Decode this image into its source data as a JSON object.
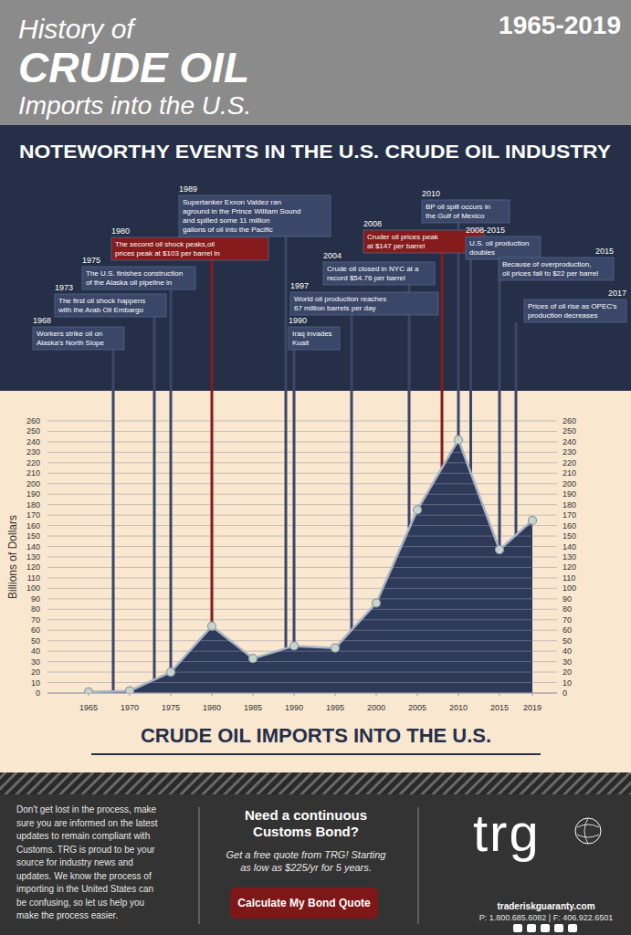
{
  "header": {
    "title_lines": [
      "History of",
      "CRUDE OIL",
      "Imports into the U.S."
    ],
    "years": "1965-2019"
  },
  "events_heading": "NOTEWORTHY EVENTS IN THE U.S. CRUDE OIL INDUSTRY",
  "chart_data": {
    "type": "area",
    "title": "CRUDE OIL IMPORTS INTO THE U.S.",
    "y_label": "Billions of Dollars",
    "x": [
      1965,
      1970,
      1975,
      1980,
      1985,
      1990,
      1995,
      2000,
      2005,
      2010,
      2015,
      2019
    ],
    "values": [
      1,
      2,
      20,
      64,
      33,
      45,
      43,
      86,
      175,
      242,
      137,
      165
    ],
    "color": "#2e3a59",
    "marker": "circle",
    "grid": true,
    "xlim": [
      1960,
      2022
    ],
    "xticks": [
      1965,
      1970,
      1975,
      1980,
      1985,
      1990,
      1995,
      2000,
      2005,
      2010,
      2015,
      2019
    ],
    "ylim": [
      0,
      260
    ],
    "yticks": [
      0,
      10,
      20,
      30,
      40,
      50,
      60,
      70,
      80,
      90,
      100,
      110,
      120,
      130,
      140,
      150,
      160,
      170,
      180,
      190,
      200,
      210,
      220,
      230,
      240,
      250,
      260
    ],
    "annotations": [
      {
        "label": "1968",
        "x": 1968,
        "color": "#3a4768",
        "text": [
          "Workers strike oil on",
          "Alaska's North Slope"
        ]
      },
      {
        "label": "1973",
        "x": 1973,
        "color": "#3a4768",
        "text": [
          "The first oil shock happens",
          "with the Arab Oil Embargo"
        ]
      },
      {
        "label": "1975",
        "x": 1975,
        "color": "#3a4768",
        "text": [
          "The U.S. finishes construction",
          "of the Alaska oil pipeline in"
        ]
      },
      {
        "label": "1980",
        "x": 1980,
        "color": "#861b1b",
        "text": [
          "The second oil shock peaks,oil",
          "prices peak at $103 per barrel in"
        ]
      },
      {
        "label": "1989",
        "x": 1989,
        "color": "#3a4768",
        "text": [
          "Supertanker Exxon Valdez ran",
          "aground in the Prince William Sound",
          "and spilled some 11 million",
          "gallons of oil into the Pacific"
        ]
      },
      {
        "label": "1990",
        "x": 1990,
        "color": "#3a4768",
        "text": [
          "Iraq invades",
          "Kuait"
        ]
      },
      {
        "label": "1997",
        "x": 1997,
        "color": "#3a4768",
        "text": [
          "World oil production reaches",
          "67 million barrels per day"
        ]
      },
      {
        "label": "2004",
        "x": 2004,
        "color": "#3a4768",
        "text": [
          "Crude oil closed in NYC at a",
          "record $54.76 per barrel"
        ]
      },
      {
        "label": "2008",
        "x": 2008,
        "color": "#861b1b",
        "text": [
          "Cruder oil prices peak",
          "at $147 per barrel"
        ]
      },
      {
        "label": "2010",
        "x": 2010,
        "color": "#3a4768",
        "text": [
          "BP oil spill occurs in",
          "the Gulf of Mexico"
        ]
      },
      {
        "label": "2008-2015",
        "x": [
          2008,
          2015
        ],
        "color": "#3a4768",
        "text": [
          "U.S. oil production",
          "doubles"
        ]
      },
      {
        "label": "2015",
        "x": 2015,
        "color": "#3a4768",
        "text": [
          "Because of overproduction,",
          "oil prices fall to $22 per barrel"
        ]
      },
      {
        "label": "2017",
        "x": 2017,
        "color": "#3a4768",
        "text": [
          "Prices of oil rise as OPEC's",
          "production decreases"
        ]
      }
    ]
  },
  "footer": {
    "paragraph": [
      "Don't get lost in the process, make",
      "sure you are informed on the latest",
      "updates to remain compliant with",
      "Customs. TRG is proud to be your",
      "source for industry news and",
      "updates. We know the process of",
      "importing in the United States can",
      "be confusing, so let us help you",
      "make the process easier."
    ],
    "cta_title": [
      "Need a continuous",
      "Customs Bond?"
    ],
    "cta_text": [
      "Get a free quote from TRG! Starting",
      "as low as $225/yr for 5 years."
    ],
    "button": "Calculate My Bond Quote",
    "logo": "trg",
    "website": "traderiskguaranty.com",
    "phone": "P: 1.800.685.6082 | F: 406.922.6501"
  }
}
